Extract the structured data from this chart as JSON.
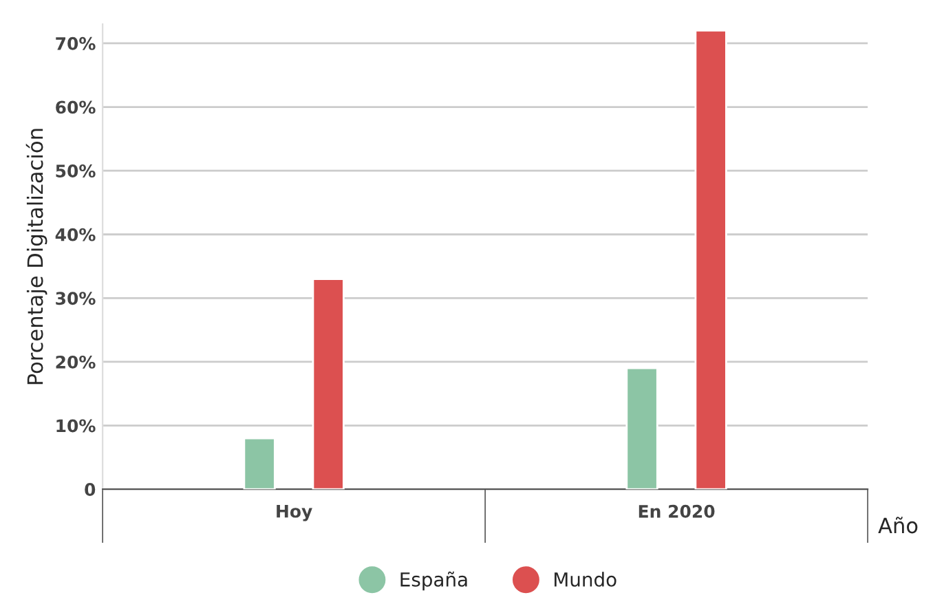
{
  "chart_data": {
    "type": "bar",
    "ylabel": "Porcentaje Digitalización",
    "xlabel": "Año",
    "categories": [
      "Hoy",
      "En 2020"
    ],
    "series": [
      {
        "name": "España",
        "color": "#8cc5a5",
        "values": [
          8,
          19
        ]
      },
      {
        "name": "Mundo",
        "color": "#dc5050",
        "values": [
          33,
          72
        ]
      }
    ],
    "ylim": [
      0,
      73
    ],
    "yticks": [
      {
        "value": 0,
        "label": "0"
      },
      {
        "value": 10,
        "label": "10%"
      },
      {
        "value": 20,
        "label": "20%"
      },
      {
        "value": 30,
        "label": "30%"
      },
      {
        "value": 40,
        "label": "40%"
      },
      {
        "value": 50,
        "label": "50%"
      },
      {
        "value": 60,
        "label": "60%"
      },
      {
        "value": 70,
        "label": "70%"
      }
    ],
    "grid": "y",
    "legend": "bottom"
  }
}
